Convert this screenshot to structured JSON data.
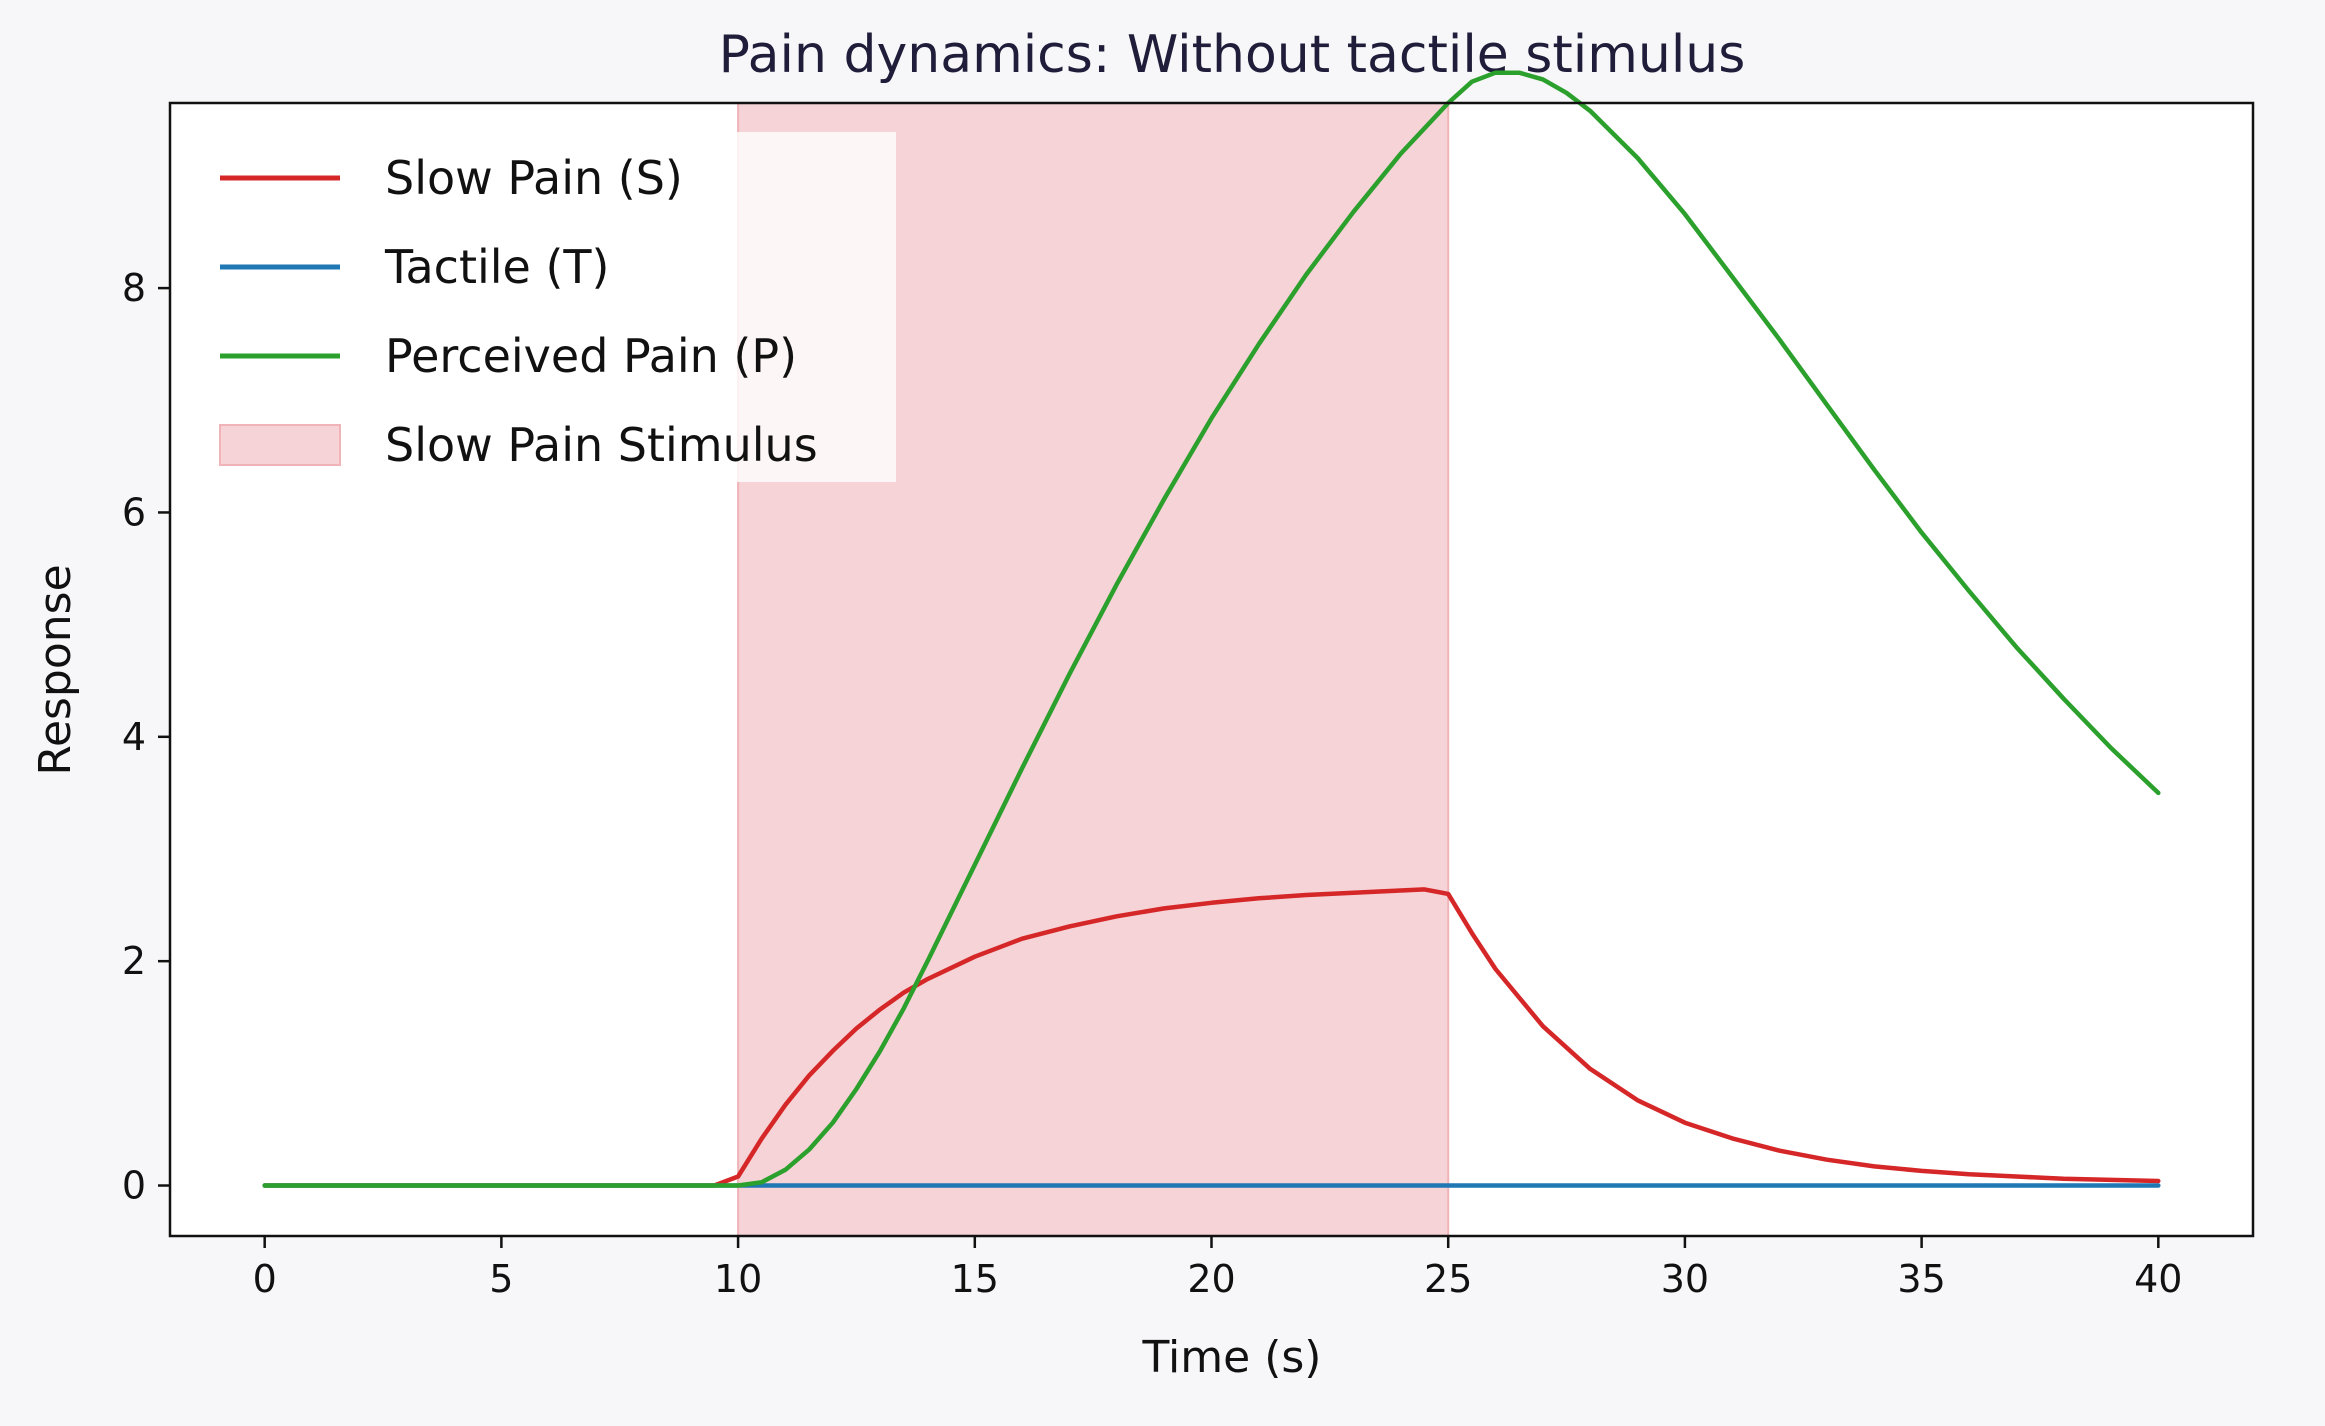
{
  "chart_data": {
    "type": "line",
    "title": "Pain dynamics: Without tactile stimulus",
    "xlabel": "Time (s)",
    "ylabel": "Response",
    "xlim": [
      -2,
      42
    ],
    "ylim": [
      -0.45,
      9.65
    ],
    "xticks": [
      0,
      5,
      10,
      15,
      20,
      25,
      30,
      35,
      40
    ],
    "yticks": [
      0,
      2,
      4,
      6,
      8
    ],
    "grid": false,
    "legend_position": "top-left",
    "stimulus": {
      "label": "Slow Pain Stimulus",
      "start": 10,
      "end": 25,
      "color": "#f5d3d6"
    },
    "series": [
      {
        "name": "Slow Pain (S)",
        "color": "#d62728",
        "x": [
          0,
          2,
          4,
          6,
          8,
          9.5,
          10,
          10.5,
          11,
          11.5,
          12,
          12.5,
          13,
          13.5,
          14,
          15,
          16,
          17,
          18,
          19,
          20,
          21,
          22,
          23,
          24,
          24.5,
          25,
          25.5,
          26,
          27,
          28,
          29,
          30,
          31,
          32,
          33,
          34,
          35,
          36,
          37,
          38,
          39,
          40
        ],
        "y": [
          0,
          0,
          0,
          0,
          0,
          0,
          0.08,
          0.42,
          0.72,
          0.98,
          1.2,
          1.4,
          1.57,
          1.72,
          1.84,
          2.04,
          2.2,
          2.31,
          2.4,
          2.47,
          2.52,
          2.56,
          2.59,
          2.61,
          2.63,
          2.64,
          2.6,
          2.25,
          1.93,
          1.42,
          1.04,
          0.76,
          0.56,
          0.42,
          0.31,
          0.23,
          0.17,
          0.13,
          0.1,
          0.08,
          0.06,
          0.05,
          0.04
        ]
      },
      {
        "name": "Tactile (T)",
        "color": "#1f77b4",
        "x": [
          0,
          40
        ],
        "y": [
          0,
          0
        ]
      },
      {
        "name": "Perceived Pain (P)",
        "color": "#2ca02c",
        "x": [
          0,
          2,
          4,
          6,
          8,
          10,
          10.5,
          11,
          11.5,
          12,
          12.5,
          13,
          13.5,
          14,
          15,
          16,
          17,
          18,
          19,
          20,
          21,
          22,
          23,
          24,
          25,
          25.5,
          26,
          26.5,
          27,
          27.5,
          28,
          29,
          30,
          31,
          32,
          33,
          34,
          35,
          36,
          37,
          38,
          39,
          40
        ],
        "y": [
          0,
          0,
          0,
          0,
          0,
          0,
          0.03,
          0.14,
          0.32,
          0.56,
          0.86,
          1.2,
          1.58,
          2.0,
          2.86,
          3.72,
          4.56,
          5.36,
          6.12,
          6.84,
          7.5,
          8.12,
          8.68,
          9.2,
          9.65,
          9.84,
          9.92,
          9.92,
          9.86,
          9.74,
          9.58,
          9.16,
          8.66,
          8.1,
          7.54,
          6.96,
          6.38,
          5.82,
          5.3,
          4.8,
          4.34,
          3.9,
          3.5
        ]
      }
    ]
  }
}
